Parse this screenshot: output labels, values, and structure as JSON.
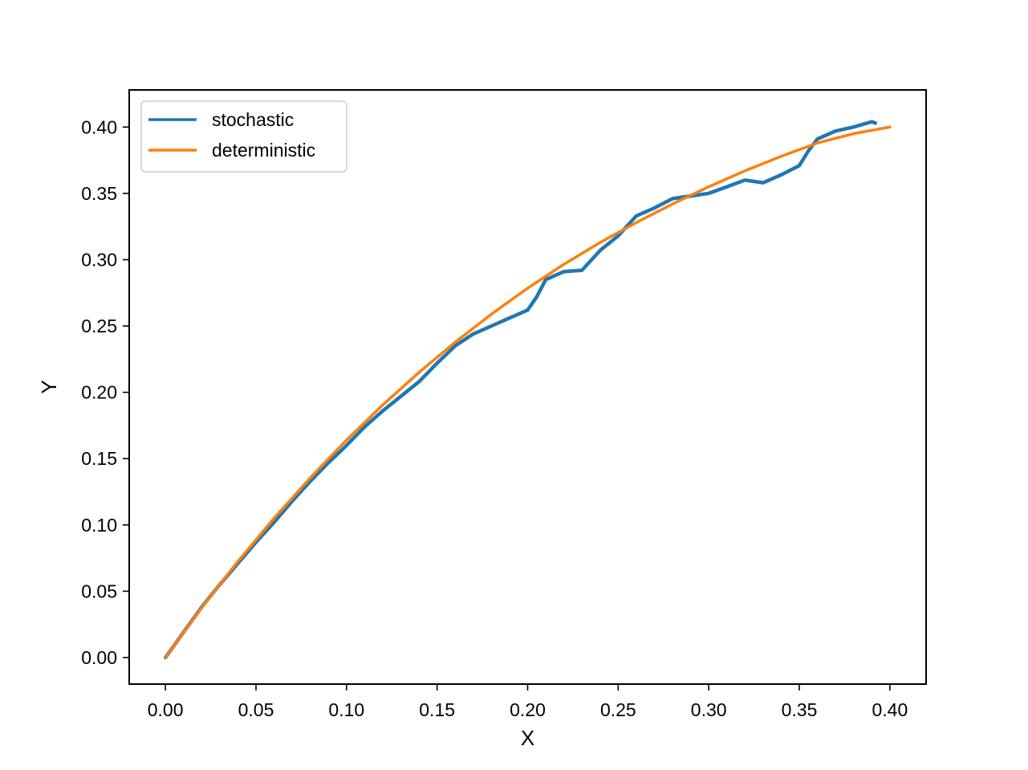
{
  "chart_data": {
    "type": "line",
    "title": "",
    "xlabel": "X",
    "ylabel": "Y",
    "xlim": [
      -0.02,
      0.42
    ],
    "ylim": [
      -0.02,
      0.428
    ],
    "xticks": [
      0.0,
      0.05,
      0.1,
      0.15,
      0.2,
      0.25,
      0.3,
      0.35,
      0.4
    ],
    "xtick_labels": [
      "0.00",
      "0.05",
      "0.10",
      "0.15",
      "0.20",
      "0.25",
      "0.30",
      "0.35",
      "0.40"
    ],
    "yticks": [
      0.0,
      0.05,
      0.1,
      0.15,
      0.2,
      0.25,
      0.3,
      0.35,
      0.4
    ],
    "ytick_labels": [
      "0.00",
      "0.05",
      "0.10",
      "0.15",
      "0.20",
      "0.25",
      "0.30",
      "0.35",
      "0.40"
    ],
    "grid": false,
    "legend_position": "top-left",
    "series": [
      {
        "name": "stochastic",
        "color": "#1f77b4",
        "x": [
          0.0,
          0.01,
          0.02,
          0.03,
          0.04,
          0.05,
          0.06,
          0.07,
          0.08,
          0.09,
          0.1,
          0.11,
          0.12,
          0.13,
          0.14,
          0.15,
          0.16,
          0.17,
          0.18,
          0.19,
          0.2,
          0.205,
          0.21,
          0.22,
          0.23,
          0.24,
          0.25,
          0.26,
          0.27,
          0.28,
          0.29,
          0.3,
          0.31,
          0.32,
          0.33,
          0.34,
          0.35,
          0.355,
          0.36,
          0.37,
          0.38,
          0.39,
          0.392
        ],
        "y": [
          0.0,
          0.019,
          0.038,
          0.055,
          0.071,
          0.087,
          0.102,
          0.118,
          0.133,
          0.147,
          0.16,
          0.174,
          0.186,
          0.197,
          0.208,
          0.222,
          0.235,
          0.244,
          0.25,
          0.256,
          0.262,
          0.272,
          0.285,
          0.291,
          0.292,
          0.307,
          0.318,
          0.333,
          0.339,
          0.346,
          0.348,
          0.35,
          0.355,
          0.36,
          0.358,
          0.364,
          0.371,
          0.382,
          0.391,
          0.397,
          0.4,
          0.404,
          0.403
        ]
      },
      {
        "name": "deterministic",
        "color": "#ff7f0e",
        "x": [
          0.0,
          0.02,
          0.04,
          0.06,
          0.08,
          0.1,
          0.12,
          0.14,
          0.16,
          0.18,
          0.2,
          0.22,
          0.24,
          0.26,
          0.28,
          0.3,
          0.32,
          0.34,
          0.36,
          0.38,
          0.4
        ],
        "y": [
          0.0,
          0.0376,
          0.0725,
          0.105,
          0.1355,
          0.164,
          0.1905,
          0.215,
          0.2378,
          0.259,
          0.2785,
          0.2965,
          0.313,
          0.328,
          0.342,
          0.355,
          0.367,
          0.378,
          0.388,
          0.395,
          0.4
        ]
      }
    ]
  }
}
